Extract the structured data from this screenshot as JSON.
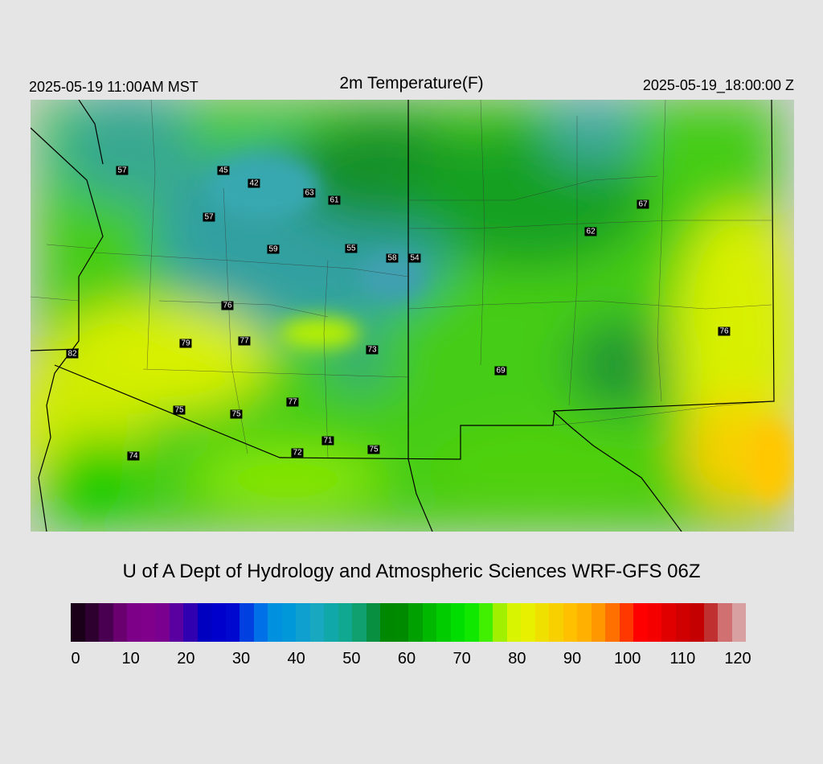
{
  "header": {
    "local_time": "2025-05-19 11:00AM MST",
    "title": "2m Temperature(F)",
    "valid_time": "2025-05-19_18:00:00 Z"
  },
  "stations": [
    {
      "id": "s1",
      "value": "57"
    },
    {
      "id": "s2",
      "value": "45"
    },
    {
      "id": "s3",
      "value": "42"
    },
    {
      "id": "s4",
      "value": "63"
    },
    {
      "id": "s5",
      "value": "61"
    },
    {
      "id": "s6",
      "value": "57"
    },
    {
      "id": "s7",
      "value": "59"
    },
    {
      "id": "s8",
      "value": "55"
    },
    {
      "id": "s9",
      "value": "58"
    },
    {
      "id": "s10",
      "value": "54"
    },
    {
      "id": "s11",
      "value": "67"
    },
    {
      "id": "s12",
      "value": "62"
    },
    {
      "id": "s13",
      "value": "76"
    },
    {
      "id": "s14",
      "value": "79"
    },
    {
      "id": "s15",
      "value": "77"
    },
    {
      "id": "s16",
      "value": "73"
    },
    {
      "id": "s17",
      "value": "82"
    },
    {
      "id": "s18",
      "value": "76"
    },
    {
      "id": "s19",
      "value": "69"
    },
    {
      "id": "s20",
      "value": "77"
    },
    {
      "id": "s21",
      "value": "75"
    },
    {
      "id": "s22",
      "value": "75"
    },
    {
      "id": "s23",
      "value": "71"
    },
    {
      "id": "s24",
      "value": "75"
    },
    {
      "id": "s25",
      "value": "72"
    },
    {
      "id": "s26",
      "value": "74"
    }
  ],
  "credit": "U of A Dept of Hydrology and Atmospheric Sciences WRF-GFS 06Z",
  "colorbar": {
    "ticks": [
      "0",
      "10",
      "20",
      "30",
      "40",
      "50",
      "60",
      "70",
      "80",
      "90",
      "100",
      "110",
      "120"
    ],
    "colors": [
      "#1a0018",
      "#2e0030",
      "#4a0050",
      "#6a0070",
      "#7d0088",
      "#80008c",
      "#7a0090",
      "#5a00a0",
      "#3000b0",
      "#0000c0",
      "#0000cc",
      "#0008d0",
      "#0040e0",
      "#0070e8",
      "#0090e0",
      "#0098d8",
      "#10a0d0",
      "#18a8c0",
      "#10a8a8",
      "#10a890",
      "#10a070",
      "#089040",
      "#008800",
      "#008a00",
      "#00a000",
      "#00b800",
      "#00cc00",
      "#00dd00",
      "#10e800",
      "#40f000",
      "#a0f000",
      "#d8f400",
      "#e8f000",
      "#f0e000",
      "#f8d000",
      "#ffc000",
      "#ffb000",
      "#ff9800",
      "#ff7000",
      "#ff3800",
      "#ff0000",
      "#f40000",
      "#e00000",
      "#d00000",
      "#c40000",
      "#c03030",
      "#d07070",
      "#d8a0a0"
    ]
  }
}
